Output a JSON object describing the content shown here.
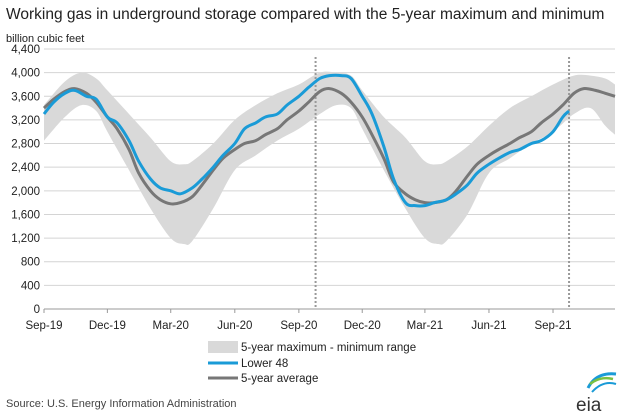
{
  "header": {
    "title": "Working gas in underground  storage compared with the 5-year maximum and minimum",
    "unit": "billion cubic feet"
  },
  "footer": {
    "source": "Source:  U.S. Energy Information Administration",
    "logo_text": "eia"
  },
  "colors": {
    "band": "#d9d9d9",
    "lower48": "#1a9bd7",
    "average": "#777777",
    "grid": "#d4d4d4",
    "marker": "#999999"
  },
  "chart_data": {
    "type": "line",
    "ylim": [
      0,
      4400
    ],
    "y_ticks": [
      "0",
      "400",
      "800",
      "1,200",
      "1,600",
      "2,000",
      "2,400",
      "2,800",
      "3,200",
      "3,600",
      "4,000",
      "4,400"
    ],
    "x_ticks": [
      "Sep-19",
      "Dec-19",
      "Mar-20",
      "Jun-20",
      "Sep-20",
      "Dec-20",
      "Mar-21",
      "Jun-21",
      "Sep-21"
    ],
    "xlim": [
      "2019-09-01",
      "2021-11-29"
    ],
    "reference_lines": [
      "2020-09-25",
      "2021-09-24"
    ],
    "legend": [
      "5-year maximum - minimum range",
      "Lower 48",
      "5-year average"
    ],
    "band": {
      "name": "5-year maximum - minimum range",
      "x": [
        "2019-09-01",
        "2019-10-01",
        "2019-10-25",
        "2019-11-15",
        "2019-12-01",
        "2020-01-01",
        "2020-02-01",
        "2020-03-01",
        "2020-03-20",
        "2020-04-01",
        "2020-05-01",
        "2020-06-01",
        "2020-07-01",
        "2020-08-01",
        "2020-09-01",
        "2020-10-01",
        "2020-10-25",
        "2020-11-15",
        "2020-12-01",
        "2021-01-01",
        "2021-02-01",
        "2021-03-01",
        "2021-03-20",
        "2021-04-01",
        "2021-05-01",
        "2021-06-01",
        "2021-07-01",
        "2021-08-01",
        "2021-09-01",
        "2021-10-01",
        "2021-10-25",
        "2021-11-15",
        "2021-11-29"
      ],
      "max": [
        3450,
        3850,
        4000,
        3900,
        3700,
        3300,
        2900,
        2500,
        2450,
        2500,
        2800,
        3200,
        3450,
        3650,
        3800,
        4000,
        4000,
        3950,
        3700,
        3250,
        2900,
        2500,
        2450,
        2500,
        2750,
        3100,
        3400,
        3600,
        3800,
        3950,
        3950,
        3900,
        3800
      ],
      "min": [
        2850,
        3250,
        3450,
        3350,
        3000,
        2350,
        1700,
        1200,
        1100,
        1150,
        1700,
        2350,
        2600,
        2850,
        3050,
        3300,
        3450,
        3400,
        3050,
        2350,
        1700,
        1200,
        1100,
        1150,
        1600,
        2300,
        2550,
        2800,
        3000,
        3300,
        3400,
        3100,
        2950
      ]
    },
    "series": [
      {
        "name": "Lower 48",
        "x": [
          "2019-09-01",
          "2019-09-15",
          "2019-10-01",
          "2019-10-15",
          "2019-11-01",
          "2019-11-15",
          "2019-12-01",
          "2019-12-15",
          "2020-01-01",
          "2020-01-15",
          "2020-02-01",
          "2020-02-15",
          "2020-03-01",
          "2020-03-15",
          "2020-04-01",
          "2020-04-15",
          "2020-05-01",
          "2020-05-15",
          "2020-06-01",
          "2020-06-15",
          "2020-07-01",
          "2020-07-15",
          "2020-08-01",
          "2020-08-15",
          "2020-09-01",
          "2020-09-15",
          "2020-10-01",
          "2020-10-15",
          "2020-11-01",
          "2020-11-15",
          "2020-12-01",
          "2020-12-15",
          "2021-01-01",
          "2021-01-15",
          "2021-02-01",
          "2021-02-15",
          "2021-03-01",
          "2021-03-15",
          "2021-04-01",
          "2021-04-15",
          "2021-05-01",
          "2021-05-15",
          "2021-06-01",
          "2021-06-15",
          "2021-07-01",
          "2021-07-15",
          "2021-08-01",
          "2021-08-15",
          "2021-09-01",
          "2021-09-15",
          "2021-09-24"
        ],
        "values": [
          3300,
          3500,
          3650,
          3700,
          3600,
          3550,
          3250,
          3150,
          2850,
          2500,
          2200,
          2050,
          2000,
          1950,
          2050,
          2200,
          2400,
          2600,
          2800,
          3050,
          3150,
          3250,
          3300,
          3450,
          3600,
          3750,
          3900,
          3950,
          3950,
          3900,
          3600,
          3300,
          2750,
          2200,
          1800,
          1750,
          1750,
          1800,
          1850,
          1950,
          2100,
          2300,
          2450,
          2550,
          2650,
          2700,
          2800,
          2850,
          3000,
          3250,
          3350
        ]
      },
      {
        "name": "5-year average",
        "x": [
          "2019-09-01",
          "2019-09-15",
          "2019-10-01",
          "2019-10-15",
          "2019-11-01",
          "2019-11-15",
          "2019-12-01",
          "2019-12-15",
          "2020-01-01",
          "2020-01-15",
          "2020-02-01",
          "2020-02-15",
          "2020-03-01",
          "2020-03-15",
          "2020-04-01",
          "2020-04-15",
          "2020-05-01",
          "2020-05-15",
          "2020-06-01",
          "2020-06-15",
          "2020-07-01",
          "2020-07-15",
          "2020-08-01",
          "2020-08-15",
          "2020-09-01",
          "2020-09-15",
          "2020-10-01",
          "2020-10-15",
          "2020-11-01",
          "2020-11-15",
          "2020-12-01",
          "2020-12-15",
          "2021-01-01",
          "2021-01-15",
          "2021-02-01",
          "2021-02-15",
          "2021-03-01",
          "2021-03-15",
          "2021-04-01",
          "2021-04-15",
          "2021-05-01",
          "2021-05-15",
          "2021-06-01",
          "2021-06-15",
          "2021-07-01",
          "2021-07-15",
          "2021-08-01",
          "2021-08-15",
          "2021-09-01",
          "2021-09-15",
          "2021-10-01",
          "2021-10-15",
          "2021-11-01",
          "2021-11-15",
          "2021-11-29"
        ],
        "values": [
          3400,
          3550,
          3680,
          3730,
          3650,
          3500,
          3250,
          3050,
          2700,
          2300,
          2000,
          1850,
          1780,
          1800,
          1900,
          2100,
          2350,
          2550,
          2700,
          2800,
          2850,
          2950,
          3050,
          3200,
          3350,
          3500,
          3680,
          3730,
          3650,
          3500,
          3250,
          2950,
          2550,
          2150,
          1950,
          1850,
          1800,
          1800,
          1850,
          2000,
          2250,
          2450,
          2600,
          2700,
          2800,
          2900,
          3000,
          3150,
          3300,
          3450,
          3650,
          3730,
          3700,
          3650,
          3600
        ]
      }
    ]
  }
}
